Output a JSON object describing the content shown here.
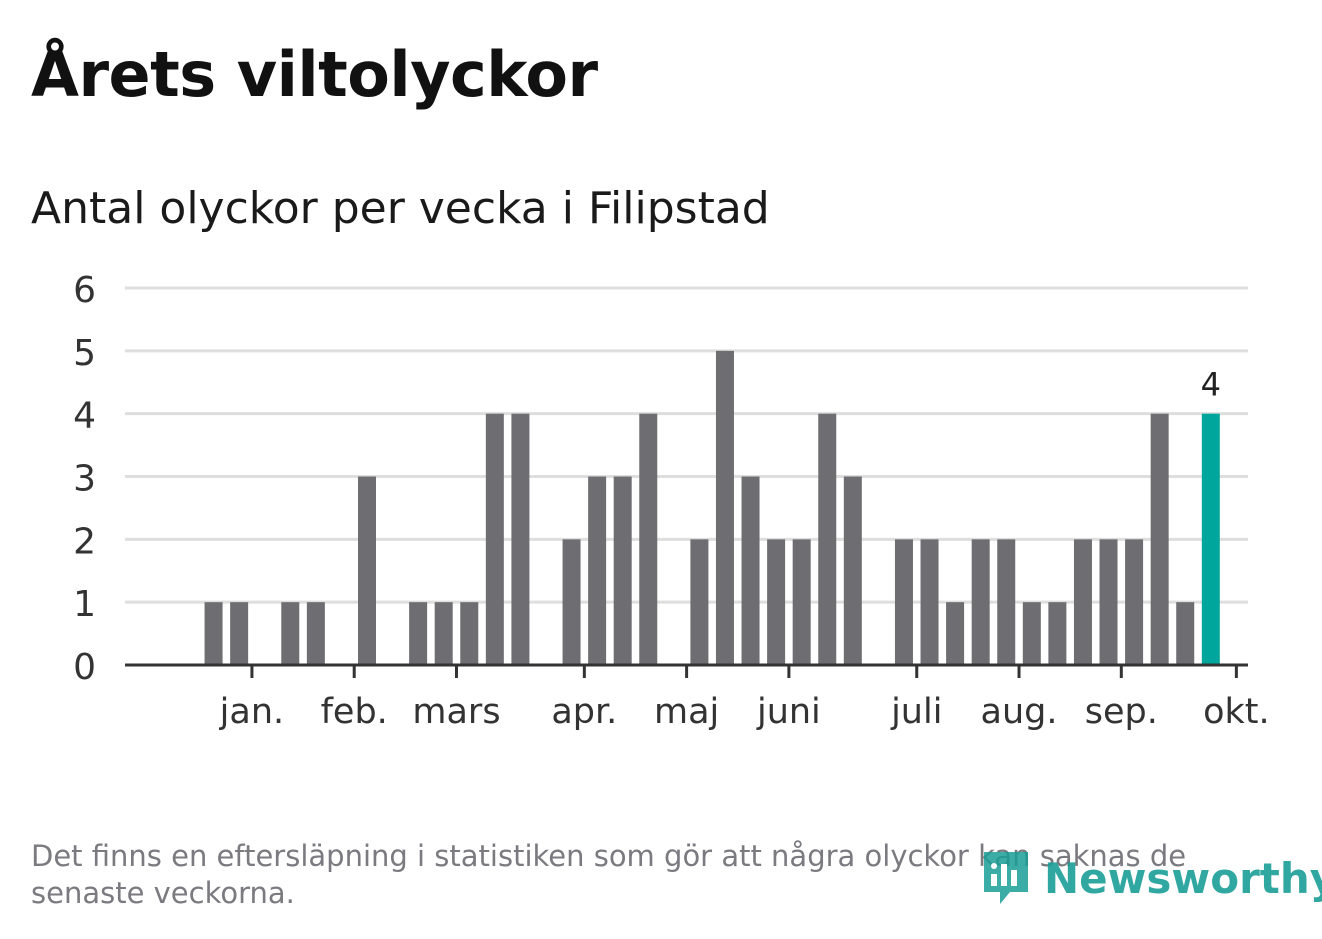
{
  "title": "Årets viltolyckor",
  "subtitle": "Antal olyckor per vecka i Filipstad",
  "footnote": "Det finns en eftersläpning i statistiken som gör att några olyckor kan saknas de senaste veckorna.",
  "brand": {
    "name": "Newsworthy",
    "icon": "newsworthy-logo-icon"
  },
  "colors": {
    "bar": "#6e6d72",
    "highlight": "#00a59b",
    "grid": "#dedede",
    "axis": "#333333"
  },
  "chart_data": {
    "type": "bar",
    "title": "Antal olyckor per vecka i Filipstad",
    "xlabel": "",
    "ylabel": "",
    "ylim": [
      0,
      6
    ],
    "yticks": [
      "0",
      "1",
      "2",
      "3",
      "4",
      "5",
      "6"
    ],
    "grid": true,
    "weeks": [
      1,
      2,
      3,
      4,
      5,
      6,
      7,
      8,
      9,
      10,
      11,
      12,
      13,
      14,
      15,
      16,
      17,
      18,
      19,
      20,
      21,
      22,
      23,
      24,
      25,
      26,
      27,
      28,
      29,
      30,
      31,
      32,
      33,
      34,
      35,
      36,
      37,
      38,
      39,
      40,
      41
    ],
    "values": [
      0,
      1,
      1,
      0,
      1,
      1,
      0,
      3,
      0,
      1,
      1,
      1,
      4,
      4,
      0,
      2,
      3,
      3,
      4,
      0,
      2,
      5,
      3,
      2,
      2,
      4,
      3,
      0,
      2,
      2,
      1,
      2,
      2,
      1,
      1,
      2,
      2,
      2,
      4,
      1,
      4
    ],
    "month_ticks": [
      {
        "label": "jan.",
        "week": 3.5
      },
      {
        "label": "feb.",
        "week": 7.5
      },
      {
        "label": "mars",
        "week": 11.5
      },
      {
        "label": "apr.",
        "week": 16.5
      },
      {
        "label": "maj",
        "week": 20.5
      },
      {
        "label": "juni",
        "week": 24.5
      },
      {
        "label": "juli",
        "week": 29.5
      },
      {
        "label": "aug.",
        "week": 33.5
      },
      {
        "label": "sep.",
        "week": 37.5
      },
      {
        "label": "okt.",
        "week": 42.0
      }
    ],
    "highlight_index": 40,
    "highlight_label": "4"
  }
}
